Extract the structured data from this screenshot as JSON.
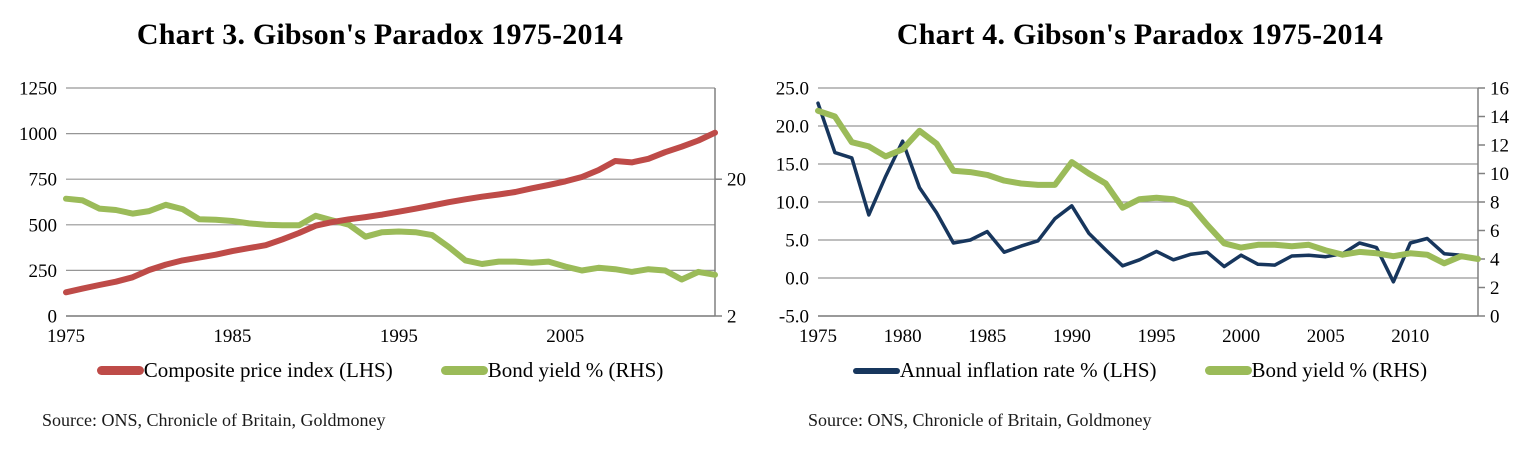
{
  "style": {
    "grid_color": "#969696",
    "axis_color": "#808080",
    "text_color": "#000000",
    "tick_font_size": 19
  },
  "chart_data": [
    {
      "type": "line",
      "title": "Chart 3. Gibson's Paradox 1975-2014",
      "source": "Source: ONS, Chronicle of Britain, Goldmoney",
      "grid": true,
      "legend_position": "bottom",
      "x_years": [
        1975,
        1976,
        1977,
        1978,
        1979,
        1980,
        1981,
        1982,
        1983,
        1984,
        1985,
        1986,
        1987,
        1988,
        1989,
        1990,
        1991,
        1992,
        1993,
        1994,
        1995,
        1996,
        1997,
        1998,
        1999,
        2000,
        2001,
        2002,
        2003,
        2004,
        2005,
        2006,
        2007,
        2008,
        2009,
        2010,
        2011,
        2012,
        2013,
        2014
      ],
      "x_tick_labels": [
        "1975",
        "1985",
        "1995",
        "2005"
      ],
      "left_axis": {
        "min": 0,
        "max": 1250,
        "ticks": [
          "1250",
          "1000",
          "750",
          "500",
          "250",
          "0"
        ]
      },
      "right_axis": {
        "type": "log",
        "anchor_value": 2,
        "units_per_decade": 750,
        "ticks": [
          "20",
          "2"
        ]
      },
      "series": [
        {
          "name": "Bond yield % (RHS)",
          "axis": "right",
          "color": "#9BBB59",
          "width": 6,
          "values": [
            14.4,
            14.0,
            12.2,
            11.9,
            11.2,
            11.7,
            13.0,
            12.1,
            10.2,
            10.1,
            9.9,
            9.5,
            9.3,
            9.2,
            9.2,
            10.8,
            10.0,
            9.3,
            7.6,
            8.2,
            8.3,
            8.2,
            7.8,
            6.4,
            5.1,
            4.8,
            5.0,
            5.0,
            4.9,
            5.0,
            4.6,
            4.3,
            4.5,
            4.4,
            4.2,
            4.4,
            4.3,
            3.7,
            4.2,
            4.0
          ]
        },
        {
          "name": "Composite price index (LHS)",
          "axis": "left",
          "color": "#BE4B48",
          "width": 6,
          "values": [
            130,
            150,
            170,
            188,
            212,
            252,
            282,
            305,
            320,
            336,
            356,
            372,
            388,
            420,
            455,
            495,
            515,
            530,
            542,
            556,
            572,
            588,
            606,
            624,
            640,
            654,
            666,
            680,
            700,
            718,
            738,
            762,
            800,
            850,
            842,
            862,
            898,
            928,
            962,
            1005
          ]
        }
      ]
    },
    {
      "type": "line",
      "title": "Chart 4. Gibson's Paradox 1975-2014",
      "source": "Source: ONS, Chronicle of Britain, Goldmoney",
      "grid": true,
      "legend_position": "bottom",
      "x_years": [
        1975,
        1976,
        1977,
        1978,
        1979,
        1980,
        1981,
        1982,
        1983,
        1984,
        1985,
        1986,
        1987,
        1988,
        1989,
        1990,
        1991,
        1992,
        1993,
        1994,
        1995,
        1996,
        1997,
        1998,
        1999,
        2000,
        2001,
        2002,
        2003,
        2004,
        2005,
        2006,
        2007,
        2008,
        2009,
        2010,
        2011,
        2012,
        2013,
        2014
      ],
      "x_tick_labels": [
        "1975",
        "1980",
        "1985",
        "1990",
        "1995",
        "2000",
        "2005",
        "2010"
      ],
      "left_axis": {
        "min": -5,
        "max": 25,
        "ticks": [
          "25.0",
          "20.0",
          "15.0",
          "10.0",
          "5.0",
          "0.0",
          "-5.0"
        ]
      },
      "right_axis": {
        "type": "linear",
        "min": 0,
        "max": 16,
        "ticks": [
          "16",
          "14",
          "12",
          "10",
          "8",
          "6",
          "4",
          "2",
          "0"
        ]
      },
      "series": [
        {
          "name": "Annual inflation rate % (LHS)",
          "axis": "left",
          "color": "#17365D",
          "width": 3.5,
          "values": [
            23.0,
            16.5,
            15.8,
            8.3,
            13.4,
            18.0,
            11.9,
            8.6,
            4.6,
            5.0,
            6.1,
            3.4,
            4.2,
            4.9,
            7.8,
            9.5,
            5.9,
            3.7,
            1.6,
            2.4,
            3.5,
            2.4,
            3.1,
            3.4,
            1.5,
            3.0,
            1.8,
            1.7,
            2.9,
            3.0,
            2.8,
            3.2,
            4.6,
            4.0,
            -0.5,
            4.6,
            5.2,
            3.2,
            3.0,
            2.4
          ]
        },
        {
          "name": "Bond yield % (RHS)",
          "axis": "right",
          "color": "#9BBB59",
          "width": 6,
          "values": [
            14.4,
            14.0,
            12.2,
            11.9,
            11.2,
            11.7,
            13.0,
            12.1,
            10.2,
            10.1,
            9.9,
            9.5,
            9.3,
            9.2,
            9.2,
            10.8,
            10.0,
            9.3,
            7.6,
            8.2,
            8.3,
            8.2,
            7.8,
            6.4,
            5.1,
            4.8,
            5.0,
            5.0,
            4.9,
            5.0,
            4.6,
            4.3,
            4.5,
            4.4,
            4.2,
            4.4,
            4.3,
            3.7,
            4.2,
            4.0
          ]
        }
      ]
    }
  ]
}
